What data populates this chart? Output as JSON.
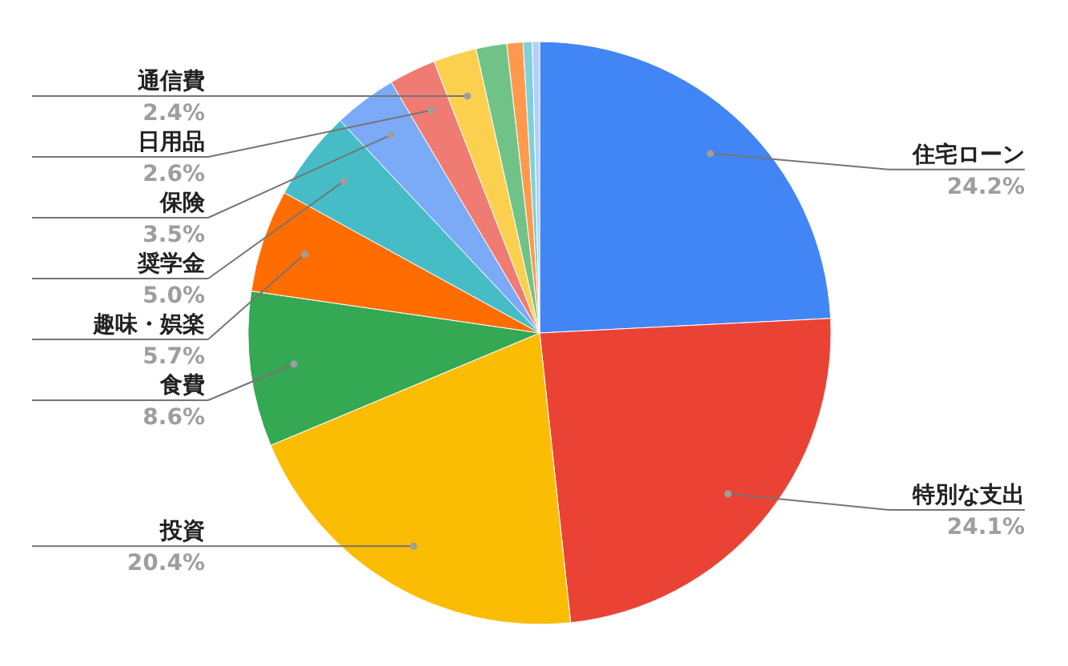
{
  "chart_data": {
    "type": "pie",
    "categories": [
      "住宅ローン",
      "特別な支出",
      "投資",
      "食費",
      "趣味・娯楽",
      "奨学金",
      "保険",
      "日用品",
      "通信費",
      null,
      null,
      null,
      null
    ],
    "values": [
      24.2,
      24.1,
      20.4,
      8.6,
      5.7,
      5.0,
      3.5,
      2.6,
      2.4,
      1.7,
      0.9,
      0.5,
      0.4
    ],
    "colors": [
      "#4285f4",
      "#ea4335",
      "#fbbc04",
      "#34a853",
      "#ff6d01",
      "#46bdc6",
      "#7baaf7",
      "#f07b72",
      "#fcd04f",
      "#71c287",
      "#ff994d",
      "#7ed1d7",
      "#b3cefb"
    ],
    "value_labels": [
      "24.2%",
      "24.1%",
      "20.4%",
      "8.6%",
      "5.7%",
      "5.0%",
      "3.5%",
      "2.6%",
      "2.4%",
      null,
      null,
      null,
      null
    ]
  }
}
